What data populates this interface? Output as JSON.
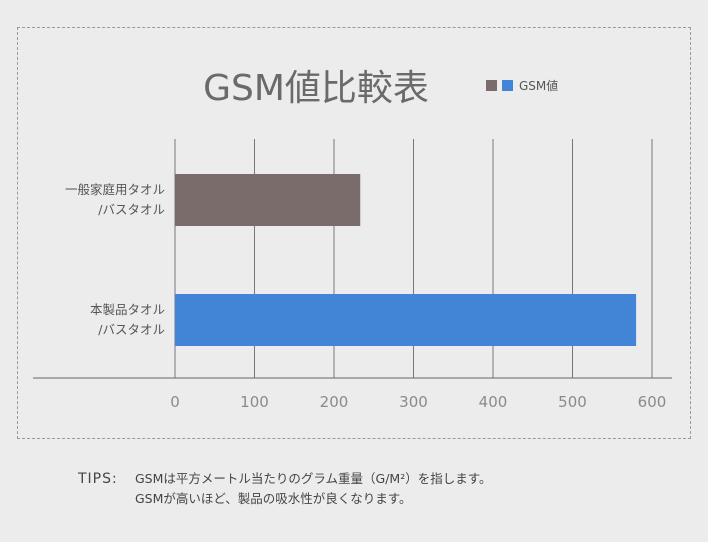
{
  "chart_data": {
    "type": "bar",
    "orientation": "horizontal",
    "title": "GSM値比較表",
    "legend": {
      "label": "GSM値",
      "placement": "top-right"
    },
    "categories": [
      "一般家庭用タオル\n/バスタオル",
      "本製品タオル\n/バスタオル"
    ],
    "series": [
      {
        "name": "GSM値",
        "values": [
          233,
          580
        ],
        "colors": [
          "#7a6c6a",
          "#4284d6"
        ]
      }
    ],
    "xlim": [
      0,
      600
    ],
    "xticks": [
      0,
      100,
      200,
      300,
      400,
      500,
      600
    ],
    "grid": true
  },
  "colors": {
    "legend_swatch_a": "#7a6c6a",
    "legend_swatch_b": "#4284d6",
    "gridline": "#777777"
  },
  "tips": {
    "label": "TIPS:",
    "line1": "GSMは平方メートル当たりのグラム重量（G/M²）を指します。",
    "line2": "GSMが高いほど、製品の吸水性が良くなります。"
  }
}
